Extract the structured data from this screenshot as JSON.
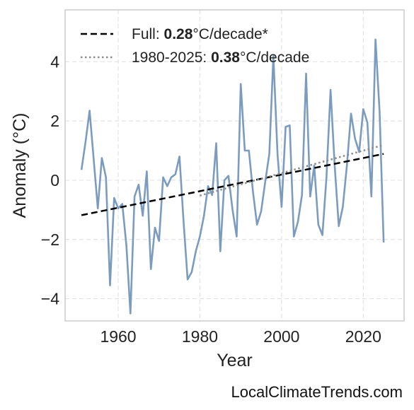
{
  "chart_data": {
    "type": "line",
    "title": "",
    "xlabel": "Year",
    "ylabel": "Anomaly (°C)",
    "xlim": [
      1947,
      2030
    ],
    "ylim": [
      -4.75,
      5.75
    ],
    "xticks": [
      1960,
      1980,
      2000,
      2020
    ],
    "yticks": [
      -4,
      -2,
      0,
      2,
      4
    ],
    "xtick_labels": [
      "1960",
      "1980",
      "2000",
      "2020"
    ],
    "ytick_labels": [
      "−4",
      "−2",
      "0",
      "2",
      "4"
    ],
    "grid": true,
    "legend_position": "top-left",
    "series": [
      {
        "kind": "data",
        "color": "#7b9cbf",
        "x": [
          1951,
          1952,
          1953,
          1954,
          1955,
          1956,
          1957,
          1958,
          1959,
          1960,
          1961,
          1962,
          1963,
          1964,
          1965,
          1966,
          1967,
          1968,
          1969,
          1970,
          1971,
          1972,
          1973,
          1974,
          1975,
          1976,
          1977,
          1978,
          1979,
          1980,
          1981,
          1982,
          1983,
          1984,
          1985,
          1986,
          1987,
          1988,
          1989,
          1990,
          1991,
          1992,
          1993,
          1994,
          1995,
          1996,
          1997,
          1998,
          1999,
          2000,
          2001,
          2002,
          2003,
          2004,
          2005,
          2006,
          2007,
          2008,
          2009,
          2010,
          2011,
          2012,
          2013,
          2014,
          2015,
          2016,
          2017,
          2018,
          2019,
          2020,
          2021,
          2022,
          2023,
          2024,
          2025
        ],
        "y": [
          0.35,
          1.3,
          2.35,
          0.7,
          -0.95,
          0.75,
          0.1,
          -3.55,
          -0.6,
          -0.95,
          -0.8,
          -2.2,
          -4.5,
          -0.55,
          -0.15,
          -1.2,
          0.3,
          -3.0,
          -1.6,
          -2.05,
          0.1,
          -0.2,
          0.1,
          0.2,
          0.8,
          -1.4,
          -3.35,
          -3.1,
          -2.4,
          -1.9,
          -1.2,
          -0.2,
          -0.5,
          1.25,
          -2.4,
          0.0,
          0.15,
          -1.0,
          -1.9,
          3.25,
          1.0,
          1.0,
          -0.4,
          -1.5,
          -1.05,
          -0.05,
          0.9,
          4.2,
          0.9,
          -0.9,
          1.8,
          1.85,
          -1.9,
          -1.4,
          -0.5,
          3.6,
          -0.55,
          0.5,
          -1.5,
          -1.85,
          0.1,
          3.05,
          0.5,
          -1.55,
          -0.9,
          0.5,
          2.25,
          1.4,
          0.95,
          2.4,
          1.95,
          -0.55,
          4.75,
          2.3,
          -2.1
        ]
      },
      {
        "kind": "trend",
        "name": "Full: 0.28°C/decade*",
        "style": "dashed",
        "color": "#000000",
        "x": [
          1951,
          2025
        ],
        "y": [
          -1.18,
          0.89
        ],
        "slope_label": "0.28"
      },
      {
        "kind": "trend",
        "name": "1980-2025: 0.38°C/decade",
        "style": "dotted",
        "color": "#8c8c8c",
        "x": [
          1980,
          2025
        ],
        "y": [
          -0.52,
          1.19
        ],
        "slope_label": "0.38"
      }
    ]
  },
  "legend": {
    "full_prefix": "Full: ",
    "full_value": "0.28",
    "full_suffix": "°C/decade*",
    "recent_prefix": "1980-2025: ",
    "recent_value": "0.38",
    "recent_suffix": "°C/decade"
  },
  "watermark": "LocalClimateTrends.com"
}
